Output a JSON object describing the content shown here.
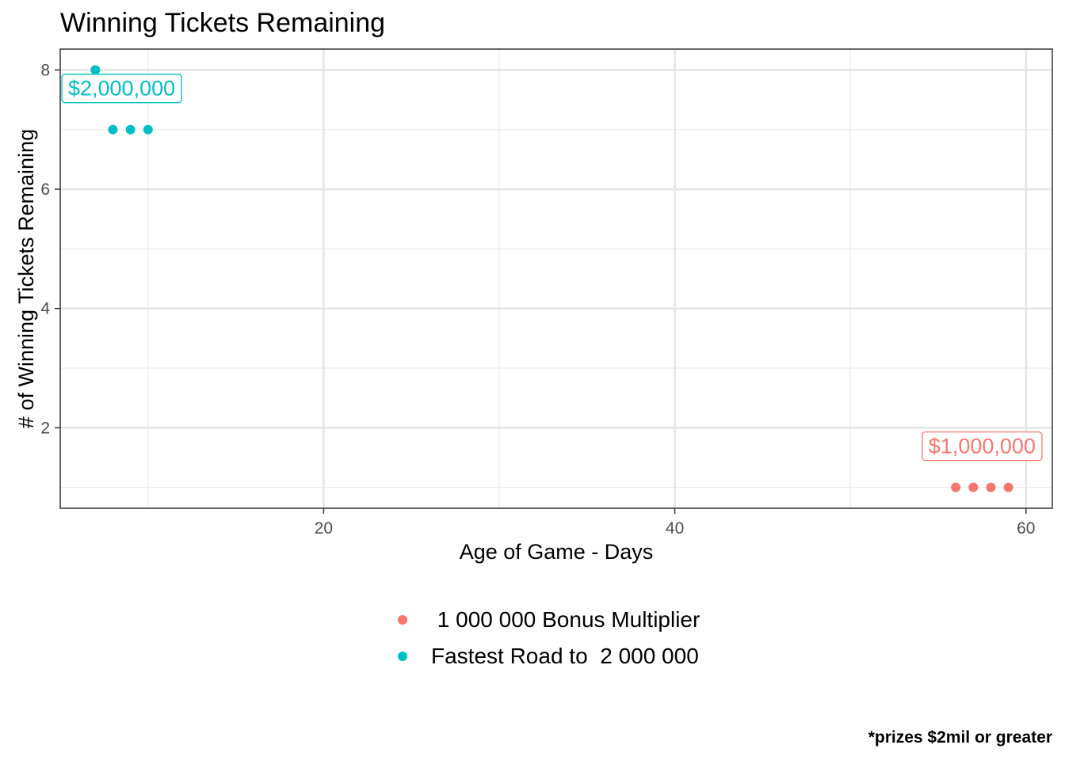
{
  "chart_data": {
    "type": "scatter",
    "title": "Winning Tickets Remaining",
    "xlabel": "Age of Game - Days",
    "ylabel": "# of Winning Tickets Remaining",
    "caption": "*prizes $2mil or greater",
    "xlim": [
      5,
      61.5
    ],
    "ylim": [
      0.65,
      8.35
    ],
    "x_ticks": [
      20,
      40,
      60
    ],
    "y_ticks": [
      2,
      4,
      6,
      8
    ],
    "grid": true,
    "legend_position": "bottom",
    "series": [
      {
        "name": " 1 000 000 Bonus Multiplier",
        "color": "#F8766D",
        "points": [
          {
            "x": 56,
            "y": 1
          },
          {
            "x": 57,
            "y": 1
          },
          {
            "x": 58,
            "y": 1
          },
          {
            "x": 59,
            "y": 1
          }
        ],
        "label": {
          "text": "$1,000,000",
          "x": 57.5,
          "y": 1
        }
      },
      {
        "name": "Fastest Road to  2 000 000",
        "color": "#00BFC4",
        "points": [
          {
            "x": 7,
            "y": 8
          },
          {
            "x": 8,
            "y": 7
          },
          {
            "x": 9,
            "y": 7
          },
          {
            "x": 10,
            "y": 7
          }
        ],
        "label": {
          "text": "$2,000,000",
          "x": 8.5,
          "y": 7
        }
      }
    ]
  }
}
